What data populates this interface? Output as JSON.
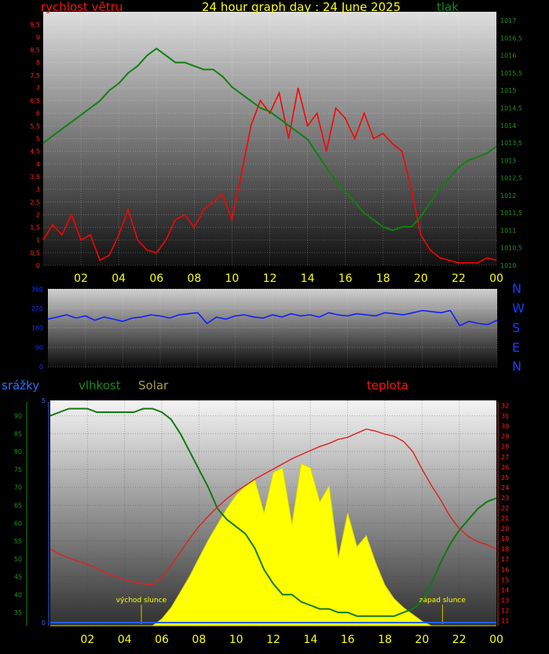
{
  "page": {
    "title": "24 hour graph day : 24 June 2025",
    "colors": {
      "wind": "#ff0000",
      "pressure": "#108010",
      "direction": "#1020ff",
      "humidity": "#107a10",
      "temperature": "#e02020",
      "solar": "#ffff00",
      "rain": "#2060ff",
      "hour_ticks": "#ffff00"
    }
  },
  "chart_data": [
    {
      "id": "wind-pressure",
      "type": "line",
      "title": "24 hour graph day : 24 June 2025",
      "left_label": "rychlost větru",
      "right_label": "tlak",
      "x_ticks": [
        "02",
        "04",
        "06",
        "08",
        "10",
        "12",
        "14",
        "16",
        "18",
        "20",
        "22",
        "00"
      ],
      "left_axis": {
        "ylim": [
          0,
          10
        ],
        "ticks": [
          "0",
          "0,5",
          "1",
          "1,5",
          "2",
          "2,5",
          "3",
          "3,5",
          "4",
          "4,5",
          "5",
          "5,5",
          "6",
          "6,5",
          "7",
          "7,5",
          "8",
          "8,5",
          "9",
          "9,5"
        ]
      },
      "right_axis": {
        "ylim": [
          1010,
          1017.25
        ],
        "ticks": [
          "1010",
          "1010,5",
          "1011",
          "1011,5",
          "1012",
          "1012,5",
          "1013",
          "1013,5",
          "1014",
          "1014,5",
          "1015",
          "1015,5",
          "1016",
          "1016,5",
          "1017"
        ]
      },
      "series": [
        {
          "name": "rychlost větru",
          "axis": "left",
          "color": "#ff0000",
          "x": [
            0.0,
            0.5,
            1.0,
            1.5,
            2.0,
            2.5,
            3.0,
            3.5,
            4.0,
            4.5,
            5.0,
            5.5,
            6.0,
            6.5,
            7.0,
            7.5,
            8.0,
            8.5,
            9.0,
            9.5,
            10.0,
            10.5,
            11.0,
            11.5,
            12.0,
            12.5,
            13.0,
            13.5,
            14.0,
            14.5,
            15.0,
            15.5,
            16.0,
            16.5,
            17.0,
            17.5,
            18.0,
            18.5,
            19.0,
            19.5,
            20.0,
            20.5,
            21.0,
            21.5,
            22.0,
            22.5,
            23.0,
            23.5,
            24.0
          ],
          "y": [
            1.0,
            1.6,
            1.2,
            2.0,
            1.0,
            1.2,
            0.2,
            0.4,
            1.2,
            2.2,
            1.0,
            0.6,
            0.5,
            1.0,
            1.8,
            2.0,
            1.5,
            2.2,
            2.5,
            2.8,
            1.8,
            3.6,
            5.5,
            6.5,
            6.0,
            6.8,
            5.0,
            7.0,
            5.5,
            6.0,
            4.5,
            6.2,
            5.8,
            5.0,
            6.0,
            5.0,
            5.2,
            4.8,
            4.5,
            3.0,
            1.2,
            0.6,
            0.3,
            0.2,
            0.1,
            0.1,
            0.1,
            0.3,
            0.2
          ]
        },
        {
          "name": "tlak",
          "axis": "right",
          "color": "#108010",
          "x": [
            0.0,
            0.5,
            1.0,
            1.5,
            2.0,
            2.5,
            3.0,
            3.5,
            4.0,
            4.5,
            5.0,
            5.5,
            6.0,
            6.5,
            7.0,
            7.5,
            8.0,
            8.5,
            9.0,
            9.5,
            10.0,
            10.5,
            11.0,
            11.5,
            12.0,
            12.5,
            13.0,
            13.5,
            14.0,
            14.5,
            15.0,
            15.5,
            16.0,
            16.5,
            17.0,
            17.5,
            18.0,
            18.5,
            19.0,
            19.5,
            20.0,
            20.5,
            21.0,
            21.5,
            22.0,
            22.5,
            23.0,
            23.5,
            24.0
          ],
          "y": [
            1013.5,
            1013.7,
            1013.9,
            1014.1,
            1014.3,
            1014.5,
            1014.7,
            1015.0,
            1015.2,
            1015.5,
            1015.7,
            1016.0,
            1016.2,
            1016.0,
            1015.8,
            1015.8,
            1015.7,
            1015.6,
            1015.6,
            1015.4,
            1015.1,
            1014.9,
            1014.7,
            1014.5,
            1014.4,
            1014.2,
            1014.0,
            1013.8,
            1013.6,
            1013.2,
            1012.8,
            1012.4,
            1012.1,
            1011.8,
            1011.5,
            1011.3,
            1011.1,
            1011.0,
            1011.1,
            1011.1,
            1011.4,
            1011.8,
            1012.2,
            1012.5,
            1012.8,
            1013.0,
            1013.1,
            1013.2,
            1013.4
          ]
        }
      ]
    },
    {
      "id": "direction",
      "type": "line",
      "y_ticks": [
        "0",
        "90",
        "180",
        "270",
        "360"
      ],
      "ylim": [
        0,
        360
      ],
      "compass": [
        "N",
        "W",
        "S",
        "E",
        "N"
      ],
      "series": [
        {
          "name": "směr",
          "color": "#1020ff",
          "x": [
            0.0,
            0.5,
            1.0,
            1.5,
            2.0,
            2.5,
            3.0,
            3.5,
            4.0,
            4.5,
            5.0,
            5.5,
            6.0,
            6.5,
            7.0,
            7.5,
            8.0,
            8.5,
            9.0,
            9.5,
            10.0,
            10.5,
            11.0,
            11.5,
            12.0,
            12.5,
            13.0,
            13.5,
            14.0,
            14.5,
            15.0,
            15.5,
            16.0,
            16.5,
            17.0,
            17.5,
            18.0,
            18.5,
            19.0,
            19.5,
            20.0,
            20.5,
            21.0,
            21.5,
            22.0,
            22.5,
            23.0,
            23.5,
            24.0
          ],
          "y": [
            220,
            230,
            240,
            225,
            235,
            215,
            230,
            220,
            210,
            225,
            230,
            240,
            235,
            225,
            240,
            245,
            250,
            200,
            230,
            220,
            235,
            240,
            230,
            225,
            240,
            230,
            245,
            235,
            240,
            230,
            250,
            240,
            235,
            245,
            240,
            235,
            250,
            245,
            240,
            250,
            260,
            255,
            250,
            260,
            190,
            210,
            200,
            195,
            215
          ]
        }
      ]
    },
    {
      "id": "humidity-temperature",
      "type": "line",
      "left_labels": [
        "srážky",
        "vlhkost",
        "Solar"
      ],
      "right_label": "teplota",
      "x_ticks": [
        "02",
        "04",
        "06",
        "08",
        "10",
        "12",
        "14",
        "16",
        "18",
        "20",
        "22",
        "00"
      ],
      "humidity_axis": {
        "ylim": [
          31.3,
          94.3
        ],
        "ticks": [
          "35",
          "40",
          "45",
          "50",
          "55",
          "60",
          "65",
          "70",
          "75",
          "80",
          "85",
          "90"
        ]
      },
      "temperature_axis": {
        "ylim": [
          10.5,
          32.5
        ],
        "ticks": [
          "11",
          "12",
          "13",
          "14",
          "15",
          "16",
          "17",
          "18",
          "19",
          "20",
          "21",
          "22",
          "23",
          "24",
          "25",
          "26",
          "27",
          "28",
          "29",
          "30",
          "31",
          "32"
        ]
      },
      "rain_axis": {
        "ylim": [
          0,
          5
        ],
        "ticks": [
          "0",
          "5"
        ]
      },
      "annotations": [
        {
          "text": "východ slunce",
          "x": 4.9
        },
        {
          "text": "západ slunce",
          "x": 21.1
        }
      ],
      "series": [
        {
          "name": "vlhkost",
          "axis": "humidity",
          "color": "#107a10",
          "x": [
            0.0,
            0.5,
            1.0,
            1.5,
            2.0,
            2.5,
            3.0,
            3.5,
            4.0,
            4.5,
            5.0,
            5.5,
            6.0,
            6.5,
            7.0,
            7.5,
            8.0,
            8.5,
            9.0,
            9.5,
            10.0,
            10.5,
            11.0,
            11.5,
            12.0,
            12.5,
            13.0,
            13.5,
            14.0,
            14.5,
            15.0,
            15.5,
            16.0,
            16.5,
            17.0,
            17.5,
            18.0,
            18.5,
            19.0,
            19.5,
            20.0,
            20.5,
            21.0,
            21.5,
            22.0,
            22.5,
            23.0,
            23.5,
            24.0
          ],
          "y": [
            90,
            91,
            92,
            92,
            92,
            91,
            91,
            91,
            91,
            91,
            92,
            92,
            91,
            89,
            85,
            80,
            75,
            70,
            64,
            61,
            59,
            57,
            53,
            47,
            43,
            40,
            40,
            38,
            37,
            36,
            36,
            35,
            35,
            34,
            34,
            34,
            34,
            34,
            35,
            36,
            38,
            43,
            49,
            54,
            58,
            61,
            64,
            66,
            67
          ]
        },
        {
          "name": "teplota",
          "axis": "temperature",
          "color": "#e02020",
          "x": [
            0.0,
            0.5,
            1.0,
            1.5,
            2.0,
            2.5,
            3.0,
            3.5,
            4.0,
            4.5,
            5.0,
            5.5,
            6.0,
            6.5,
            7.0,
            7.5,
            8.0,
            8.5,
            9.0,
            9.5,
            10.0,
            10.5,
            11.0,
            11.5,
            12.0,
            12.5,
            13.0,
            13.5,
            14.0,
            14.5,
            15.0,
            15.5,
            16.0,
            16.5,
            17.0,
            17.5,
            18.0,
            18.5,
            19.0,
            19.5,
            20.0,
            20.5,
            21.0,
            21.5,
            22.0,
            22.5,
            23.0,
            23.5,
            24.0
          ],
          "y": [
            18.0,
            17.5,
            17.1,
            16.8,
            16.5,
            16.1,
            15.7,
            15.3,
            15.0,
            14.8,
            14.6,
            14.5,
            15.2,
            16.4,
            17.7,
            19.0,
            20.2,
            21.2,
            22.1,
            22.9,
            23.6,
            24.2,
            24.8,
            25.3,
            25.8,
            26.3,
            26.8,
            27.2,
            27.6,
            28.0,
            28.3,
            28.7,
            28.9,
            29.3,
            29.7,
            29.5,
            29.2,
            29.0,
            28.5,
            27.5,
            25.8,
            24.2,
            22.8,
            21.2,
            20.0,
            19.2,
            18.7,
            18.4,
            18.0
          ]
        },
        {
          "name": "Solar",
          "axis": "solar",
          "color": "#ffff00",
          "x": [
            0.0,
            0.5,
            1.0,
            1.5,
            2.0,
            2.5,
            3.0,
            3.5,
            4.0,
            4.5,
            5.0,
            5.5,
            6.0,
            6.5,
            7.0,
            7.5,
            8.0,
            8.5,
            9.0,
            9.5,
            10.0,
            10.5,
            11.0,
            11.5,
            12.0,
            12.5,
            13.0,
            13.5,
            14.0,
            14.5,
            15.0,
            15.5,
            16.0,
            16.5,
            17.0,
            17.5,
            18.0,
            18.5,
            19.0,
            19.5,
            20.0,
            20.5,
            21.0,
            21.5,
            22.0,
            22.5,
            23.0,
            23.5,
            24.0
          ],
          "y": [
            0,
            0,
            0,
            0,
            0,
            0,
            0,
            0,
            0,
            0,
            0,
            0,
            0.03,
            0.08,
            0.15,
            0.22,
            0.3,
            0.38,
            0.45,
            0.52,
            0.58,
            0.62,
            0.65,
            0.5,
            0.68,
            0.7,
            0.45,
            0.72,
            0.7,
            0.55,
            0.62,
            0.3,
            0.5,
            0.35,
            0.4,
            0.28,
            0.18,
            0.12,
            0.08,
            0.05,
            0.02,
            0,
            0,
            0,
            0,
            0,
            0,
            0,
            0
          ]
        },
        {
          "name": "srážky",
          "axis": "rain",
          "color": "#2060ff",
          "x": [
            0,
            24
          ],
          "y": [
            0,
            0
          ]
        }
      ]
    }
  ]
}
